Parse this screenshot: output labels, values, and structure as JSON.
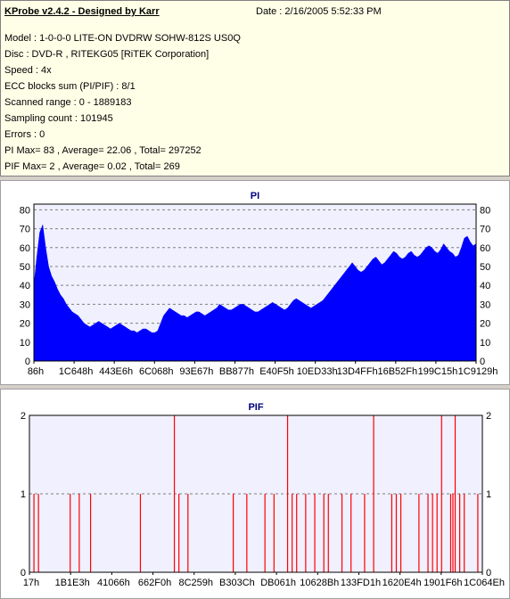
{
  "header": {
    "title": "KProbe v2.4.2 - Designed by Karr",
    "date": "Date : 2/16/2005 5:52:33 PM"
  },
  "info": [
    "Model : 1-0-0-0 LITE-ON DVDRW SOHW-812S  US0Q",
    "Disc : DVD-R , RITEKG05 [RiTEK Corporation]",
    "Speed : 4x",
    "ECC blocks sum (PI/PIF) : 8/1",
    "Scanned range : 0 - 1889183",
    "Sampling count : 101945",
    "Errors : 0",
    "PI Max= 83 , Average= 22.06 , Total= 297252",
    "PIF Max= 2 , Average= 0.02 , Total= 269"
  ],
  "colors": {
    "pi_fill": "#0000ff",
    "pif_line": "#ff0000",
    "plot_bg": "#f0f0ff",
    "grid": "#808080"
  },
  "chart_data": [
    {
      "type": "area",
      "title": "PI",
      "ylim": [
        0,
        83
      ],
      "yticks": [
        0,
        10,
        20,
        30,
        40,
        50,
        60,
        70,
        80
      ],
      "xticks": [
        "86h",
        "1C648h",
        "443E6h",
        "6C068h",
        "93E67h",
        "BB877h",
        "E40F5h",
        "10ED33h",
        "13D4FFh",
        "16B52Fh",
        "199C15h",
        "1C9129h"
      ],
      "grid": true,
      "values": [
        40,
        55,
        68,
        72,
        60,
        50,
        45,
        42,
        38,
        35,
        33,
        30,
        28,
        26,
        25,
        24,
        22,
        20,
        19,
        18,
        19,
        20,
        21,
        20,
        19,
        18,
        17,
        18,
        19,
        20,
        19,
        18,
        17,
        16,
        16,
        15,
        16,
        17,
        17,
        16,
        15,
        15,
        16,
        20,
        24,
        26,
        28,
        27,
        26,
        25,
        24,
        24,
        23,
        24,
        25,
        26,
        26,
        25,
        24,
        25,
        26,
        27,
        28,
        30,
        29,
        28,
        27,
        27,
        28,
        29,
        30,
        30,
        29,
        28,
        27,
        26,
        26,
        27,
        28,
        29,
        30,
        31,
        30,
        29,
        28,
        27,
        28,
        30,
        32,
        33,
        32,
        31,
        30,
        29,
        28,
        29,
        30,
        31,
        32,
        34,
        36,
        38,
        40,
        42,
        44,
        46,
        48,
        50,
        52,
        50,
        48,
        47,
        48,
        50,
        52,
        54,
        55,
        53,
        51,
        52,
        54,
        56,
        58,
        57,
        55,
        54,
        55,
        57,
        58,
        56,
        55,
        56,
        58,
        60,
        61,
        60,
        58,
        57,
        59,
        62,
        60,
        58,
        57,
        55,
        56,
        60,
        65,
        66,
        63,
        61,
        62
      ]
    },
    {
      "type": "bar",
      "title": "PIF",
      "ylim": [
        0,
        2
      ],
      "yticks": [
        0,
        1,
        2
      ],
      "xticks": [
        "17h",
        "1B1E3h",
        "41066h",
        "662F0h",
        "8C259h",
        "B303Ch",
        "DB061h",
        "10628Bh",
        "133FD1h",
        "1620E4h",
        "1901F6h",
        "1C064Eh"
      ],
      "grid": true,
      "spikes": [
        [
          0.01,
          1
        ],
        [
          0.02,
          1
        ],
        [
          0.09,
          1
        ],
        [
          0.11,
          1
        ],
        [
          0.135,
          1
        ],
        [
          0.245,
          1
        ],
        [
          0.32,
          2
        ],
        [
          0.33,
          1
        ],
        [
          0.35,
          1
        ],
        [
          0.45,
          1
        ],
        [
          0.48,
          1
        ],
        [
          0.52,
          1
        ],
        [
          0.54,
          1
        ],
        [
          0.57,
          2
        ],
        [
          0.58,
          1
        ],
        [
          0.59,
          1
        ],
        [
          0.61,
          1
        ],
        [
          0.63,
          1
        ],
        [
          0.65,
          1
        ],
        [
          0.66,
          1
        ],
        [
          0.69,
          1
        ],
        [
          0.71,
          1
        ],
        [
          0.74,
          1
        ],
        [
          0.76,
          2
        ],
        [
          0.8,
          1
        ],
        [
          0.81,
          1
        ],
        [
          0.82,
          1
        ],
        [
          0.86,
          1
        ],
        [
          0.88,
          1
        ],
        [
          0.89,
          1
        ],
        [
          0.9,
          1
        ],
        [
          0.91,
          2
        ],
        [
          0.93,
          1
        ],
        [
          0.935,
          1
        ],
        [
          0.94,
          2
        ],
        [
          0.95,
          1
        ],
        [
          0.96,
          1
        ],
        [
          0.99,
          1
        ]
      ]
    }
  ]
}
